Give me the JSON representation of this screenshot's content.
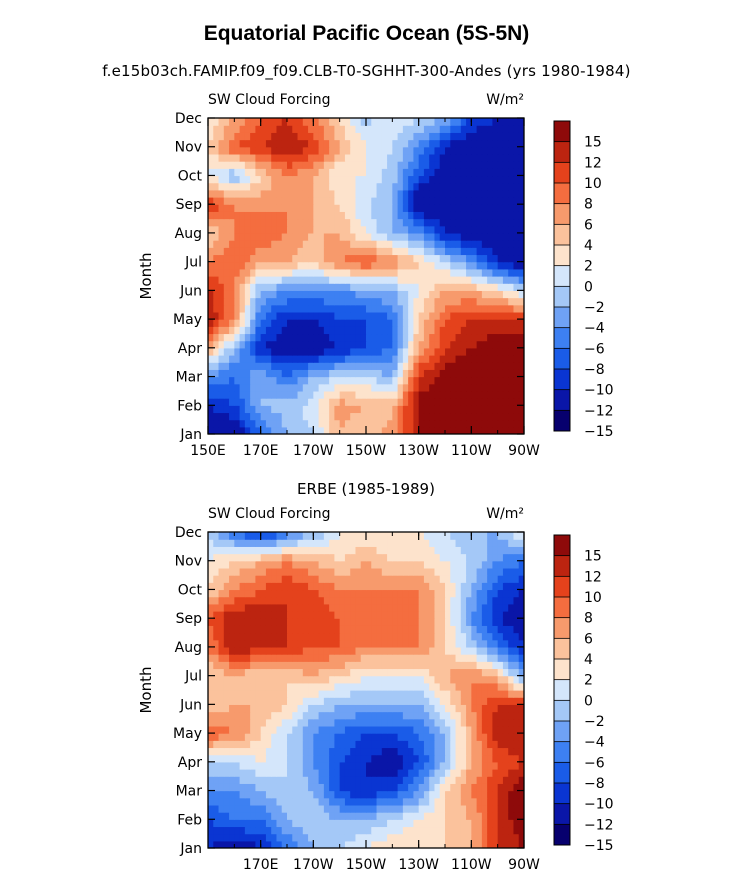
{
  "figure": {
    "title": "Equatorial Pacific Ocean (5S-5N)",
    "subtitle": "f.e15b03ch.FAMIP.f09_f09.CLB-T0-SGHHT-300-Andes (yrs 1980-1984)"
  },
  "chart_data": [
    {
      "type": "heatmap",
      "panel_title": "",
      "left_label": "SW Cloud Forcing",
      "units": "W/m²",
      "ylabel": "Month",
      "y_tick_labels": [
        "Jan",
        "Feb",
        "Mar",
        "Apr",
        "May",
        "Jun",
        "Jul",
        "Aug",
        "Sep",
        "Oct",
        "Nov",
        "Dec"
      ],
      "x_range_lon_east": [
        150,
        270
      ],
      "x_ticks": [
        150,
        170,
        190,
        210,
        230,
        250,
        270
      ],
      "x_tick_labels": [
        "150E",
        "170E",
        "170W",
        "150W",
        "130W",
        "110W",
        "90W"
      ],
      "color_levels": [
        -15,
        -12,
        -10,
        -8,
        -6,
        -4,
        -2,
        0,
        2,
        4,
        6,
        8,
        10,
        12,
        15
      ],
      "colorbar_labels": [
        "15",
        "12",
        "10",
        "8",
        "6",
        "4",
        "2",
        "0",
        "−2",
        "−4",
        "−6",
        "−8",
        "−10",
        "−12",
        "−15"
      ],
      "lon_grid": [
        150,
        160,
        170,
        180,
        190,
        200,
        210,
        220,
        230,
        240,
        250,
        260,
        270
      ],
      "values": [
        [
          -14,
          -15,
          -8,
          -4,
          -2,
          4,
          2,
          5,
          12,
          15,
          17,
          17,
          17
        ],
        [
          -12,
          -10,
          -4,
          -3,
          -1,
          5,
          4,
          3,
          13,
          15,
          17,
          17,
          17
        ],
        [
          -6,
          -8,
          -4,
          -8,
          -4,
          -2,
          -2,
          -4,
          10,
          13,
          15,
          17,
          17
        ],
        [
          4,
          -4,
          -12,
          -14,
          -14,
          -12,
          -10,
          -8,
          4,
          10,
          12,
          14,
          15
        ],
        [
          12,
          6,
          -8,
          -12,
          -12,
          -10,
          -10,
          -8,
          2,
          8,
          10,
          10,
          10
        ],
        [
          11,
          6,
          -4,
          -6,
          -6,
          -6,
          -5,
          -4,
          0,
          4,
          4,
          2,
          -2
        ],
        [
          6,
          8,
          4,
          4,
          2,
          6,
          8,
          6,
          2,
          -2,
          -6,
          -12,
          -15
        ],
        [
          2,
          6,
          8,
          6,
          4,
          4,
          0,
          -4,
          -6,
          -12,
          -14,
          -15,
          -15
        ],
        [
          10,
          6,
          5,
          6,
          4,
          2,
          -2,
          -4,
          -15,
          -15,
          -15,
          -15,
          -15
        ],
        [
          0,
          -4,
          2,
          6,
          4,
          0,
          0,
          -3,
          -10,
          -14,
          -15,
          -15,
          -15
        ],
        [
          2,
          8,
          10,
          12,
          10,
          4,
          0,
          -2,
          -6,
          -12,
          -15,
          -15,
          -15
        ],
        [
          0,
          4,
          8,
          10,
          6,
          2,
          -3,
          0,
          -2,
          -4,
          -10,
          -12,
          -12
        ]
      ]
    },
    {
      "type": "heatmap",
      "panel_title": "ERBE (1985-1989)",
      "left_label": "SW Cloud Forcing",
      "units": "W/m²",
      "ylabel": "Month",
      "y_tick_labels": [
        "Jan",
        "Feb",
        "Mar",
        "Apr",
        "May",
        "Jun",
        "Jul",
        "Aug",
        "Sep",
        "Oct",
        "Nov",
        "Dec"
      ],
      "x_range_lon_east": [
        150,
        270
      ],
      "x_ticks": [
        170,
        190,
        210,
        230,
        250,
        270
      ],
      "x_tick_labels": [
        "170E",
        "170W",
        "150W",
        "130W",
        "110W",
        "90W"
      ],
      "color_levels": [
        -15,
        -12,
        -10,
        -8,
        -6,
        -4,
        -2,
        0,
        2,
        4,
        6,
        8,
        10,
        12,
        15
      ],
      "colorbar_labels": [
        "15",
        "12",
        "10",
        "8",
        "6",
        "4",
        "2",
        "0",
        "−2",
        "−4",
        "−6",
        "−8",
        "−10",
        "−12",
        "−15"
      ],
      "lon_grid": [
        150,
        160,
        170,
        180,
        190,
        200,
        210,
        220,
        230,
        240,
        250,
        260,
        270
      ],
      "values": [
        [
          -12,
          -14,
          -12,
          -8,
          -4,
          -2,
          0,
          2,
          2,
          2,
          4,
          10,
          12
        ],
        [
          -10,
          -8,
          -8,
          -4,
          -2,
          -4,
          -4,
          -2,
          0,
          2,
          4,
          10,
          14
        ],
        [
          -6,
          -6,
          -4,
          -2,
          -4,
          -10,
          -12,
          -10,
          -6,
          2,
          6,
          10,
          14
        ],
        [
          -2,
          -2,
          0,
          -2,
          -6,
          -10,
          -12,
          -14,
          -10,
          -4,
          4,
          8,
          10
        ],
        [
          8,
          6,
          2,
          -2,
          -6,
          -8,
          -10,
          -10,
          -8,
          -4,
          4,
          12,
          12
        ],
        [
          2,
          4,
          4,
          2,
          -2,
          -4,
          -4,
          -4,
          -4,
          0,
          6,
          10,
          10
        ],
        [
          2,
          4,
          2,
          2,
          4,
          2,
          0,
          0,
          0,
          4,
          6,
          4,
          -6
        ],
        [
          6,
          12,
          10,
          10,
          8,
          8,
          6,
          6,
          6,
          2,
          -2,
          -8,
          -12
        ],
        [
          8,
          12,
          12,
          10,
          10,
          8,
          8,
          8,
          6,
          2,
          -6,
          -12,
          -14
        ],
        [
          2,
          6,
          8,
          10,
          8,
          6,
          6,
          6,
          6,
          2,
          -4,
          -10,
          -12
        ],
        [
          0,
          2,
          4,
          6,
          4,
          2,
          4,
          2,
          2,
          0,
          -2,
          -6,
          -8
        ],
        [
          -2,
          -8,
          -12,
          -8,
          -4,
          0,
          0,
          0,
          0,
          -2,
          -4,
          -4,
          0
        ]
      ]
    }
  ]
}
